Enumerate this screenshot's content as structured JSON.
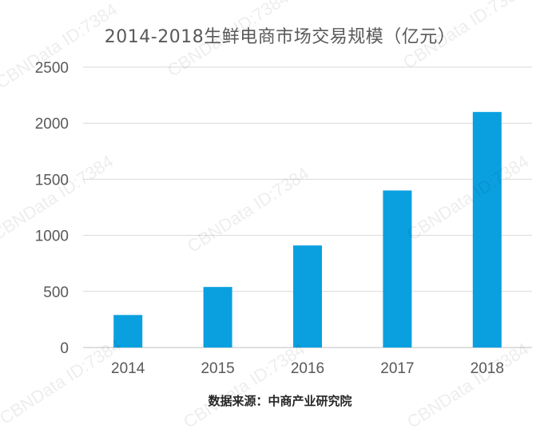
{
  "chart_data": {
    "type": "bar",
    "title": "2014-2018生鲜电商市场交易规模（亿元）",
    "categories": [
      "2014",
      "2015",
      "2016",
      "2017",
      "2018"
    ],
    "values": [
      290,
      540,
      910,
      1400,
      2100
    ],
    "ylim": [
      0,
      2500
    ],
    "yticks": [
      0,
      500,
      1000,
      1500,
      2000,
      2500
    ],
    "xlabel": "",
    "ylabel": "",
    "grid": true,
    "bar_color": "#0aa0e0"
  },
  "source_note": "数据来源：中商产业研究院",
  "watermark_text": "CBNData ID:7384"
}
